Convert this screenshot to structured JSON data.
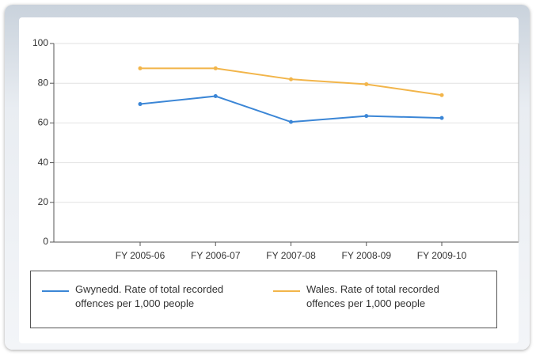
{
  "chart_data": {
    "type": "line",
    "categories": [
      "FY 2005-06",
      "FY 2006-07",
      "FY 2007-08",
      "FY 2008-09",
      "FY 2009-10"
    ],
    "series": [
      {
        "name": "Gwynedd. Rate of total recorded offences per 1,000 people",
        "color": "#3b86d6",
        "values": [
          69.5,
          73.5,
          60.5,
          63.5,
          62.5
        ]
      },
      {
        "name": "Wales. Rate of total recorded offences per 1,000 people",
        "color": "#f2b54a",
        "values": [
          87.5,
          87.5,
          82,
          79.5,
          74
        ]
      }
    ],
    "ylim": [
      0,
      100
    ],
    "yticks": [
      0,
      20,
      40,
      60,
      80,
      100
    ],
    "grid": true
  }
}
